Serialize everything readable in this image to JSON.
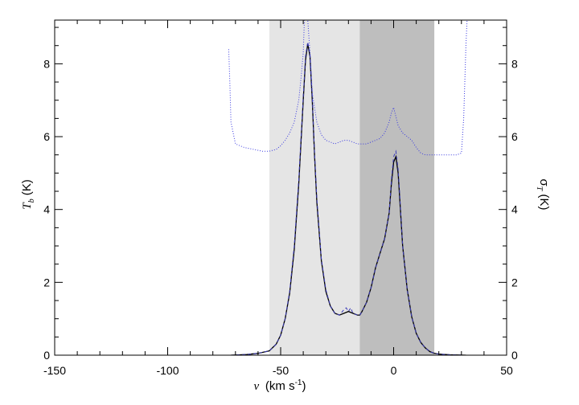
{
  "chart_data": {
    "type": "line",
    "xlabel": "v (km s⁻¹)",
    "xlabel_parts": {
      "var": "v",
      "unit": "(km s",
      "exp": "-1",
      "close": ")"
    },
    "ylabel_left_parts": {
      "var": "T",
      "sub": "b",
      "unit": " (K)"
    },
    "ylabel_right_parts": {
      "var": "σ",
      "sub": "T",
      "unit": " (K)"
    },
    "xlim": [
      -150,
      50
    ],
    "ylim": [
      0,
      9.2
    ],
    "xticks": [
      "-150",
      "-100",
      "-50",
      "0",
      "50"
    ],
    "yticks_left": [
      "0",
      "2",
      "4",
      "6",
      "8"
    ],
    "yticks_right": [
      "0",
      "2",
      "4",
      "6",
      "8"
    ],
    "shaded_regions": [
      {
        "x_range": [
          -55,
          -15
        ],
        "color": "#e5e5e5"
      },
      {
        "x_range": [
          -15,
          18
        ],
        "color": "#bebebe"
      }
    ],
    "series": [
      {
        "style": "solid",
        "color": "#000000",
        "x": [
          -72,
          -65,
          -60,
          -55,
          -52,
          -50,
          -48,
          -46,
          -44,
          -42,
          -40,
          -39,
          -38,
          -37,
          -36,
          -35,
          -34,
          -32,
          -30,
          -28,
          -26,
          -24,
          -22,
          -20,
          -18,
          -16,
          -15,
          -14,
          -12,
          -10,
          -8,
          -6,
          -4,
          -2,
          -1,
          0,
          1,
          2,
          3,
          4,
          6,
          8,
          10,
          12,
          14,
          16,
          18,
          20,
          25,
          32
        ],
        "y": [
          0.0,
          0.02,
          0.05,
          0.12,
          0.3,
          0.55,
          1.0,
          1.7,
          2.9,
          4.7,
          7.0,
          8.1,
          8.55,
          8.2,
          7.0,
          5.5,
          4.2,
          2.6,
          1.75,
          1.35,
          1.15,
          1.1,
          1.15,
          1.2,
          1.15,
          1.1,
          1.1,
          1.2,
          1.45,
          1.85,
          2.4,
          2.8,
          3.2,
          3.9,
          4.7,
          5.3,
          5.45,
          5.0,
          4.0,
          3.0,
          1.8,
          1.05,
          0.6,
          0.35,
          0.2,
          0.1,
          0.05,
          0.03,
          0.01,
          0.0
        ]
      },
      {
        "style": "dashed",
        "color": "#3a3ab8",
        "x": [
          -72,
          -65,
          -60,
          -55,
          -52,
          -50,
          -48,
          -46,
          -44,
          -42,
          -40,
          -39,
          -38,
          -37,
          -36,
          -35,
          -34,
          -32,
          -30,
          -28,
          -26,
          -24,
          -22,
          -21,
          -20,
          -19,
          -18,
          -16,
          -15,
          -14,
          -12,
          -10,
          -8,
          -6,
          -4,
          -2,
          -1,
          0,
          1,
          2,
          3,
          4,
          6,
          8,
          10,
          12,
          14,
          16,
          18,
          20,
          25,
          32
        ],
        "y": [
          0.0,
          0.02,
          0.05,
          0.12,
          0.3,
          0.55,
          1.0,
          1.75,
          3.0,
          4.8,
          7.1,
          8.2,
          8.6,
          8.25,
          7.1,
          5.6,
          4.3,
          2.65,
          1.8,
          1.35,
          1.15,
          1.1,
          1.25,
          1.3,
          1.2,
          1.3,
          1.15,
          1.1,
          1.1,
          1.2,
          1.45,
          1.85,
          2.4,
          2.8,
          3.2,
          3.9,
          4.8,
          5.45,
          5.6,
          5.1,
          4.1,
          3.0,
          1.8,
          1.05,
          0.6,
          0.35,
          0.2,
          0.1,
          0.05,
          0.03,
          0.01,
          0.0
        ]
      },
      {
        "style": "dotted",
        "color": "#3a3ae0",
        "x": [
          -73,
          -72.5,
          -72,
          -70,
          -66,
          -62,
          -58,
          -55,
          -52,
          -50,
          -48,
          -46,
          -44,
          -42,
          -41,
          -40,
          -39.5,
          -39,
          -38.5,
          -38,
          -37,
          -36,
          -34,
          -32,
          -30,
          -28,
          -26,
          -24,
          -22,
          -20,
          -18,
          -16,
          -14,
          -12,
          -10,
          -8,
          -6,
          -4,
          -2,
          -1,
          0,
          1,
          2,
          4,
          6,
          8,
          10,
          12,
          14,
          16,
          18,
          20,
          24,
          28,
          30,
          31,
          32,
          32.5
        ],
        "y": [
          8.4,
          7.5,
          6.4,
          5.8,
          5.7,
          5.65,
          5.6,
          5.6,
          5.65,
          5.75,
          5.9,
          6.1,
          6.4,
          7.0,
          7.6,
          8.3,
          9.2,
          9.2,
          9.2,
          9.2,
          8.3,
          7.2,
          6.4,
          6.05,
          5.9,
          5.85,
          5.8,
          5.85,
          5.9,
          5.9,
          5.85,
          5.8,
          5.8,
          5.8,
          5.85,
          5.9,
          5.95,
          6.1,
          6.4,
          6.65,
          6.8,
          6.55,
          6.3,
          6.1,
          6.0,
          5.9,
          5.7,
          5.55,
          5.5,
          5.5,
          5.5,
          5.5,
          5.5,
          5.5,
          5.55,
          6.5,
          8.5,
          9.2
        ]
      }
    ]
  }
}
